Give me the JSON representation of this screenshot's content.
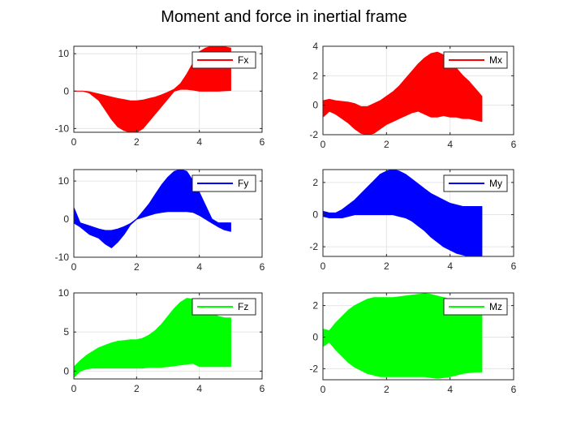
{
  "figure": {
    "title": "Moment and force in inertial frame"
  },
  "chart_data": [
    {
      "id": "fx",
      "type": "area",
      "title": "",
      "legend": "Fx",
      "color": "#ff0000",
      "xlim": [
        0,
        6
      ],
      "ylim": [
        -11,
        12
      ],
      "xticks": [
        0,
        2,
        4,
        6
      ],
      "yticks": [
        -10,
        0,
        10
      ],
      "xticklabels": [
        "0",
        "2",
        "4",
        "6"
      ],
      "yticklabels": [
        "-10",
        "0",
        "10"
      ],
      "x": [
        0,
        0.3,
        0.5,
        0.8,
        1.0,
        1.2,
        1.4,
        1.6,
        1.8,
        2.0,
        2.2,
        2.4,
        2.6,
        2.8,
        3.0,
        3.2,
        3.4,
        3.6,
        3.8,
        4.0,
        4.2,
        4.4,
        4.6,
        4.8,
        5.0
      ],
      "upper": [
        0,
        0,
        -0.2,
        -0.8,
        -1.2,
        -1.6,
        -2,
        -2.3,
        -2.6,
        -2.6,
        -2.4,
        -2,
        -1.6,
        -1,
        -0.3,
        0.5,
        2,
        4.5,
        7.5,
        10.5,
        11.5,
        12,
        12,
        11.8,
        11.5
      ],
      "lower": [
        0,
        0,
        -0.5,
        -2.5,
        -5,
        -7.5,
        -9.5,
        -10.5,
        -11,
        -11,
        -10,
        -8,
        -6,
        -4,
        -2,
        0,
        0.5,
        0.5,
        0.3,
        0,
        0,
        0,
        0,
        0.1,
        0.2
      ]
    },
    {
      "id": "mx",
      "type": "area",
      "title": "",
      "legend": "Mx",
      "color": "#ff0000",
      "xlim": [
        0,
        6
      ],
      "ylim": [
        -2,
        4
      ],
      "xticks": [
        0,
        2,
        4,
        6
      ],
      "yticks": [
        -2,
        0,
        2,
        4
      ],
      "xticklabels": [
        "0",
        "2",
        "4",
        "6"
      ],
      "yticklabels": [
        "-2",
        "0",
        "2",
        "4"
      ],
      "x": [
        0,
        0.2,
        0.4,
        0.6,
        0.8,
        1.0,
        1.2,
        1.4,
        1.6,
        1.8,
        2.0,
        2.2,
        2.4,
        2.6,
        2.8,
        3.0,
        3.2,
        3.4,
        3.6,
        3.8,
        4.0,
        4.2,
        4.4,
        4.6,
        4.8,
        5.0
      ],
      "upper": [
        0.3,
        0.4,
        0.3,
        0.25,
        0.2,
        0.1,
        -0.1,
        -0.1,
        0.1,
        0.3,
        0.6,
        0.9,
        1.3,
        1.8,
        2.3,
        2.8,
        3.2,
        3.5,
        3.6,
        3.4,
        3.0,
        2.5,
        2.0,
        1.6,
        1.1,
        0.6
      ],
      "lower": [
        -0.8,
        -0.4,
        -0.6,
        -0.9,
        -1.2,
        -1.6,
        -1.9,
        -2.0,
        -1.9,
        -1.6,
        -1.3,
        -1.1,
        -0.9,
        -0.7,
        -0.5,
        -0.4,
        -0.6,
        -0.8,
        -0.8,
        -0.7,
        -0.8,
        -0.8,
        -0.9,
        -0.9,
        -1.0,
        -1.1
      ]
    },
    {
      "id": "fy",
      "type": "area",
      "title": "",
      "legend": "Fy",
      "color": "#0000ff",
      "xlim": [
        0,
        6
      ],
      "ylim": [
        -10,
        13
      ],
      "xticks": [
        0,
        2,
        4,
        6
      ],
      "yticks": [
        -10,
        0,
        10
      ],
      "xticklabels": [
        "0",
        "2",
        "4",
        "6"
      ],
      "yticklabels": [
        "-10",
        "0",
        "10"
      ],
      "x": [
        0,
        0.2,
        0.5,
        0.8,
        1.0,
        1.2,
        1.4,
        1.6,
        1.8,
        2.0,
        2.2,
        2.4,
        2.6,
        2.8,
        3.0,
        3.2,
        3.4,
        3.6,
        3.8,
        4.0,
        4.2,
        4.4,
        4.6,
        4.8,
        5.0
      ],
      "upper": [
        3,
        -1,
        -1.8,
        -2.6,
        -3,
        -3,
        -2.6,
        -2,
        -1.2,
        0,
        2,
        4,
        6.5,
        9,
        11,
        12.5,
        13,
        12.5,
        10,
        7,
        3.5,
        0,
        -1,
        -1,
        -1
      ],
      "lower": [
        -1,
        -2,
        -4,
        -5,
        -6.5,
        -7.5,
        -6,
        -4,
        -1.5,
        0,
        0.5,
        1,
        1.5,
        1.8,
        2,
        2,
        2,
        2,
        1.8,
        1,
        0,
        -1,
        -2,
        -2.8,
        -3.2
      ]
    },
    {
      "id": "my",
      "type": "area",
      "title": "",
      "legend": "My",
      "color": "#0000ff",
      "xlim": [
        0,
        6
      ],
      "ylim": [
        -2.6,
        2.8
      ],
      "xticks": [
        0,
        2,
        4,
        6
      ],
      "yticks": [
        -2,
        0,
        2
      ],
      "xticklabels": [
        "0",
        "2",
        "4",
        "6"
      ],
      "yticklabels": [
        "-2",
        "0",
        "2"
      ],
      "x": [
        0,
        0.2,
        0.4,
        0.6,
        0.8,
        1.0,
        1.2,
        1.4,
        1.6,
        1.8,
        2.0,
        2.2,
        2.4,
        2.6,
        2.8,
        3.0,
        3.2,
        3.4,
        3.6,
        3.8,
        4.0,
        4.2,
        4.4,
        4.6,
        4.8,
        5.0
      ],
      "upper": [
        0.2,
        0.1,
        0.1,
        0.3,
        0.6,
        0.9,
        1.3,
        1.7,
        2.1,
        2.5,
        2.7,
        2.8,
        2.7,
        2.5,
        2.2,
        1.9,
        1.6,
        1.3,
        1.1,
        0.9,
        0.7,
        0.6,
        0.5,
        0.5,
        0.5,
        0.5
      ],
      "lower": [
        -0.1,
        -0.2,
        -0.2,
        -0.2,
        -0.1,
        0,
        0,
        0,
        0,
        0,
        0,
        0,
        -0.1,
        -0.2,
        -0.4,
        -0.7,
        -1.0,
        -1.4,
        -1.7,
        -2.0,
        -2.2,
        -2.4,
        -2.5,
        -2.6,
        -2.6,
        -2.6
      ]
    },
    {
      "id": "fz",
      "type": "area",
      "title": "",
      "legend": "Fz",
      "color": "#00ff00",
      "xlim": [
        0,
        6
      ],
      "ylim": [
        -1,
        10
      ],
      "xticks": [
        0,
        2,
        4,
        6
      ],
      "yticks": [
        0,
        5,
        10
      ],
      "xticklabels": [
        "0",
        "2",
        "4",
        "6"
      ],
      "yticklabels": [
        "0",
        "5",
        "10"
      ],
      "x": [
        0,
        0.2,
        0.4,
        0.6,
        0.8,
        1.0,
        1.2,
        1.4,
        1.6,
        1.8,
        2.0,
        2.2,
        2.4,
        2.6,
        2.8,
        3.0,
        3.2,
        3.4,
        3.6,
        3.8,
        4.0,
        4.2,
        4.4,
        4.6,
        4.8,
        5.0
      ],
      "upper": [
        0.5,
        1.3,
        2.0,
        2.5,
        3.0,
        3.3,
        3.6,
        3.8,
        3.9,
        4.0,
        4.0,
        4.2,
        4.6,
        5.2,
        6.0,
        7.0,
        8.0,
        8.8,
        9.3,
        9.2,
        8.6,
        8.0,
        7.5,
        7.0,
        6.8,
        6.8
      ],
      "lower": [
        -0.8,
        0,
        0.3,
        0.4,
        0.4,
        0.4,
        0.4,
        0.4,
        0.4,
        0.4,
        0.4,
        0.4,
        0.5,
        0.5,
        0.5,
        0.6,
        0.7,
        0.8,
        0.9,
        1.0,
        0.6,
        0.6,
        0.6,
        0.6,
        0.6,
        0.6
      ]
    },
    {
      "id": "mz",
      "type": "area",
      "title": "",
      "legend": "Mz",
      "color": "#00ff00",
      "xlim": [
        0,
        6
      ],
      "ylim": [
        -2.7,
        2.8
      ],
      "xticks": [
        0,
        2,
        4,
        6
      ],
      "yticks": [
        -2,
        0,
        2
      ],
      "xticklabels": [
        "0",
        "2",
        "4",
        "6"
      ],
      "yticklabels": [
        "-2",
        "0",
        "2"
      ],
      "x": [
        0,
        0.2,
        0.4,
        0.6,
        0.8,
        1.0,
        1.2,
        1.4,
        1.6,
        1.8,
        2.0,
        2.2,
        2.4,
        2.6,
        2.8,
        3.0,
        3.2,
        3.4,
        3.6,
        3.8,
        4.0,
        4.2,
        4.4,
        4.6,
        4.8,
        5.0
      ],
      "upper": [
        0.5,
        0.4,
        0.9,
        1.3,
        1.7,
        2.0,
        2.2,
        2.4,
        2.5,
        2.5,
        2.5,
        2.5,
        2.55,
        2.6,
        2.65,
        2.7,
        2.75,
        2.7,
        2.6,
        2.5,
        2.4,
        2.3,
        2.2,
        2.2,
        2.2,
        2.2
      ],
      "lower": [
        -0.6,
        -0.3,
        -0.8,
        -1.2,
        -1.6,
        -1.9,
        -2.1,
        -2.3,
        -2.4,
        -2.5,
        -2.5,
        -2.5,
        -2.5,
        -2.5,
        -2.5,
        -2.5,
        -2.5,
        -2.55,
        -2.6,
        -2.55,
        -2.5,
        -2.4,
        -2.3,
        -2.25,
        -2.2,
        -2.2
      ]
    }
  ]
}
